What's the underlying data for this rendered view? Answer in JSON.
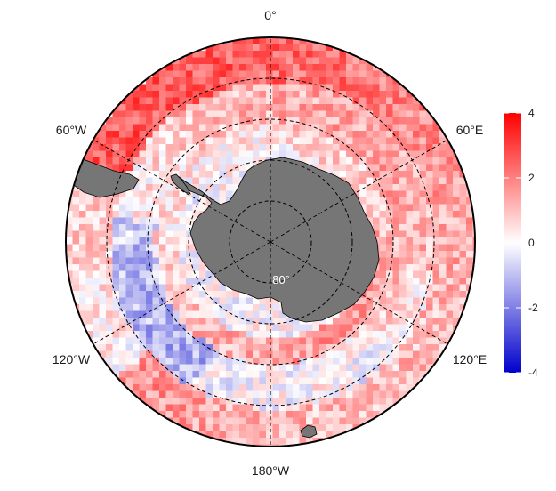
{
  "map": {
    "projection": "south-polar-stereographic",
    "center": "South Pole",
    "graticule": "dashed",
    "land_color": "#767676",
    "longitude_labels": [
      {
        "text": "0°",
        "lon": 0
      },
      {
        "text": "60°E",
        "lon": 60
      },
      {
        "text": "120°E",
        "lon": 120
      },
      {
        "text": "180°W",
        "lon": 180
      },
      {
        "text": "120°W",
        "lon": -120
      },
      {
        "text": "60°W",
        "lon": -60
      }
    ],
    "latitude_label": {
      "text": "80°",
      "lat": -80
    },
    "latitude_circles": [
      -80,
      -70,
      -60,
      -50,
      -40
    ]
  },
  "colorbar": {
    "min": -4,
    "max": 4,
    "ticks": [
      "4",
      "2",
      "0",
      "-2",
      "-4"
    ],
    "colors": {
      "low": "#0000cc",
      "mid": "#ffffff",
      "high": "#ff0000"
    },
    "placement": "right"
  }
}
